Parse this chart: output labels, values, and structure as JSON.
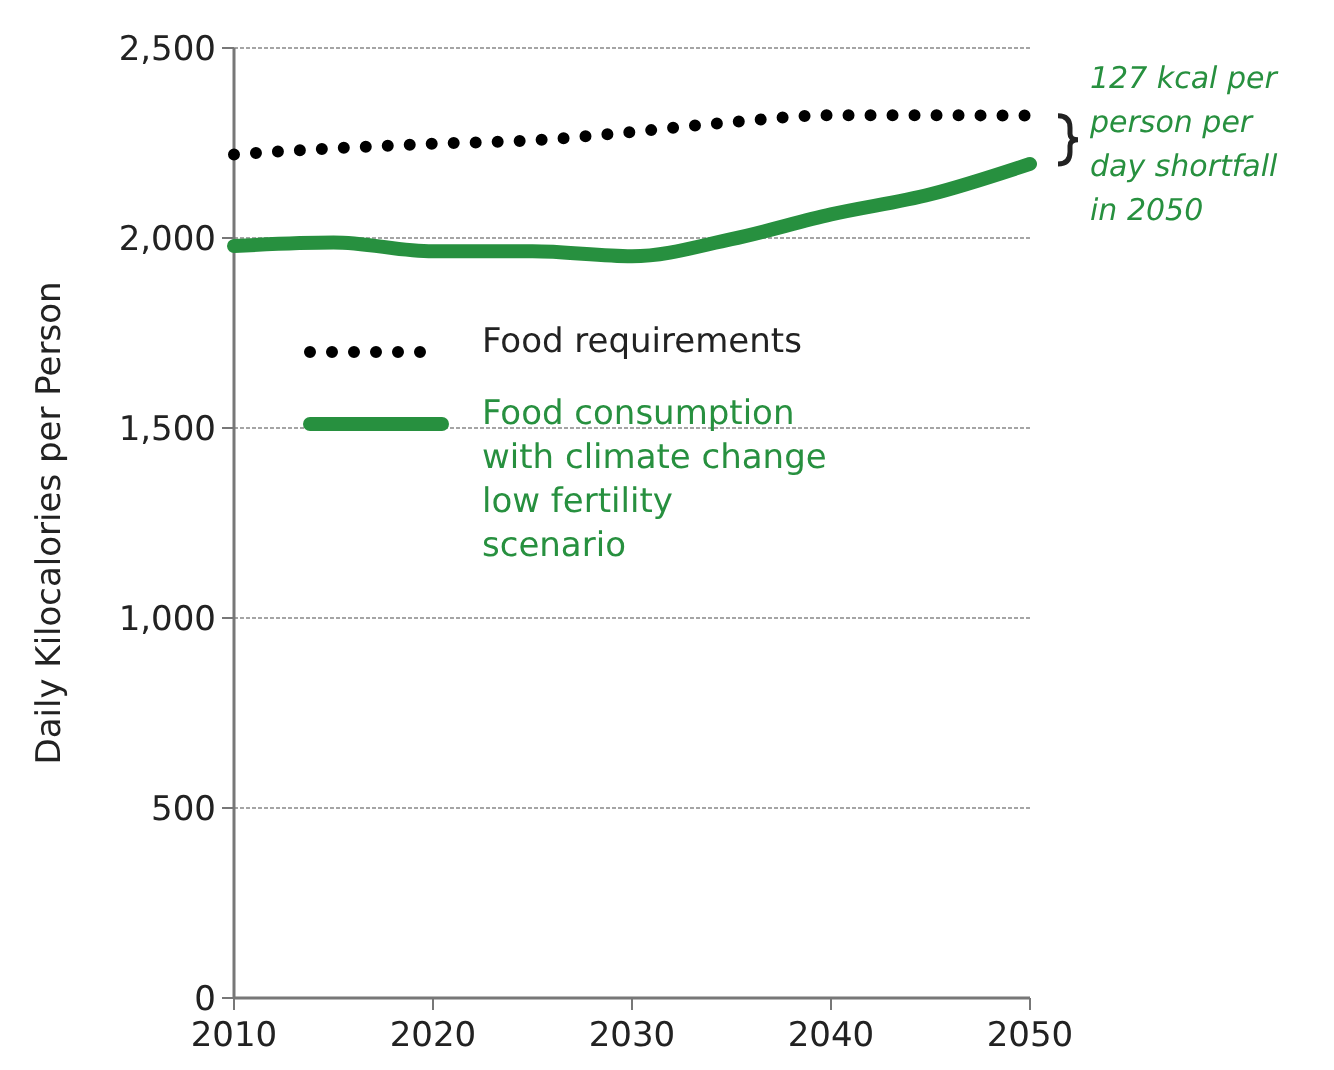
{
  "chart_data": {
    "type": "line",
    "ylabel": "Daily Kilocalories per Person",
    "x": [
      2010,
      2015,
      2020,
      2025,
      2030,
      2035,
      2040,
      2045,
      2050
    ],
    "series": [
      {
        "name": "Food requirements",
        "color": "#000000",
        "line_style": "dotted",
        "values": [
          2220,
          2236,
          2248,
          2257,
          2279,
          2305,
          2323,
          2323,
          2322
        ]
      },
      {
        "name": "Food consumption with climate change low fertility scenario",
        "color": "#27903f",
        "line_style": "solid",
        "values": [
          1979,
          1988,
          1965,
          1965,
          1952,
          1997,
          2062,
          2115,
          2195
        ]
      }
    ],
    "xlim": [
      2010,
      2050
    ],
    "xticks": [
      2010,
      2020,
      2030,
      2040,
      2050
    ],
    "ylim": [
      0,
      2500
    ],
    "yticks": [
      0,
      {
        "value": 500,
        "label": "500"
      },
      {
        "value": 1000,
        "label": "1,000"
      },
      {
        "value": 1500,
        "label": "1,500"
      },
      {
        "value": 2000,
        "label": "2,000"
      },
      {
        "value": 2500,
        "label": "2,500"
      }
    ],
    "grid": "y",
    "legend": "left",
    "annotations": [
      "127 kcal per person per day shortfall in 2050"
    ]
  }
}
